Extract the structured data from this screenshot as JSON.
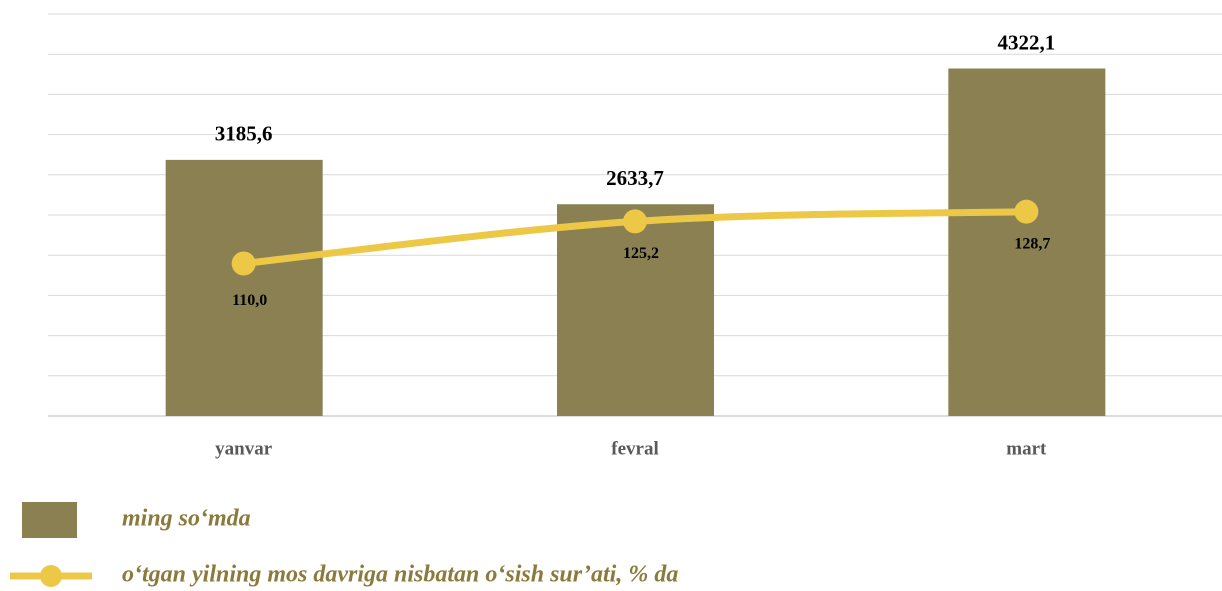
{
  "chart_data": {
    "type": "bar_line",
    "categories": [
      "yanvar",
      "fevral",
      "mart"
    ],
    "series": [
      {
        "name": "ming so‘mda",
        "type": "bar",
        "color": "#8b8052",
        "values": [
          3185.6,
          2633.7,
          4322.1
        ],
        "value_labels": [
          "3185,6",
          "2633,7",
          "4322,1"
        ]
      },
      {
        "name": "o‘tgan yilning mos davriga nisbatan o‘sish sur’ati, % da",
        "type": "line",
        "axis": "y2",
        "color": "#ecc846",
        "values": [
          110.0,
          125.2,
          128.7
        ],
        "value_labels": [
          "110,0",
          "125,2",
          "128,7"
        ]
      }
    ],
    "ylim": [
      0,
      5000
    ],
    "yticks": [
      0,
      500,
      1000,
      1500,
      2000,
      2500,
      3000,
      3500,
      4000,
      4500,
      5000
    ],
    "y2lim": [
      55,
      200
    ],
    "grid": true,
    "legend": "bottom"
  }
}
